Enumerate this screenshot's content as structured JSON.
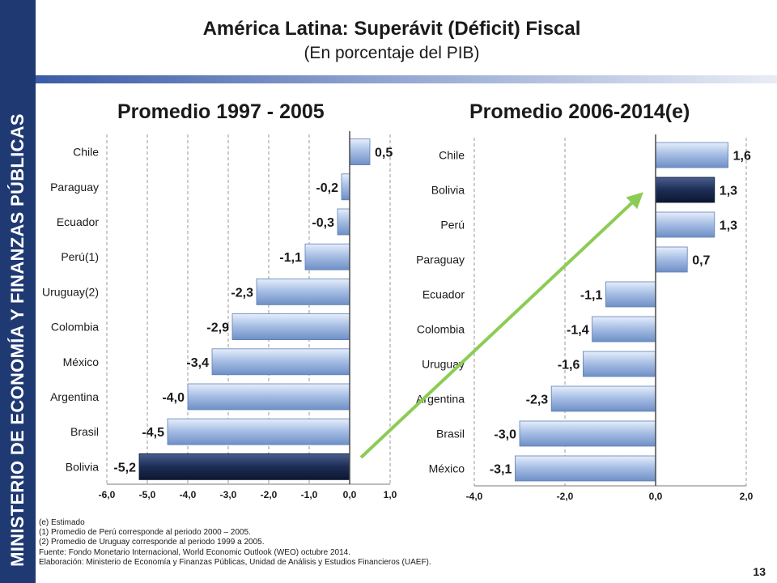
{
  "sidebar": {
    "text": "MINISTERIO DE ECONOMÍA Y FINANZAS PÚBLICAS"
  },
  "header": {
    "title": "América Latina: Superávit (Déficit) Fiscal",
    "subtitle": "(En porcentaje del PIB)"
  },
  "colors": {
    "bar": "#a9c0e6",
    "highlight": "#1c2d55",
    "arrow": "#8ccc55",
    "sidebar": "#1f3a73"
  },
  "chart_data": [
    {
      "type": "bar",
      "orientation": "horizontal",
      "title": "Promedio 1997 - 2005",
      "categories": [
        "Chile",
        "Paraguay",
        "Ecuador",
        "Perú(1)",
        "Uruguay(2)",
        "Colombia",
        "México",
        "Argentina",
        "Brasil",
        "Bolivia"
      ],
      "values": [
        0.5,
        -0.2,
        -0.3,
        -1.1,
        -2.3,
        -2.9,
        -3.4,
        -4.0,
        -4.5,
        -5.2
      ],
      "data_labels": [
        "0,5",
        "-0,2",
        "-0,3",
        "-1,1",
        "-2,3",
        "-2,9",
        "-3,4",
        "-4,0",
        "-4,5",
        "-5,2"
      ],
      "highlight": "Bolivia",
      "xlim": [
        -6.0,
        1.0
      ],
      "ticks": [
        -6,
        -5,
        -4,
        -3,
        -2,
        -1,
        0,
        1
      ],
      "tick_labels": [
        "-6,0",
        "-5,0",
        "-4,0",
        "-3,0",
        "-2,0",
        "-1,0",
        "0,0",
        "1,0"
      ],
      "grid": "vertical dashed"
    },
    {
      "type": "bar",
      "orientation": "horizontal",
      "title": "Promedio 2006-2014(e)",
      "categories": [
        "Chile",
        "Bolivia",
        "Perú",
        "Paraguay",
        "Ecuador",
        "Colombia",
        "Uruguay",
        "Argentina",
        "Brasil",
        "México"
      ],
      "values": [
        1.6,
        1.3,
        1.3,
        0.7,
        -1.1,
        -1.4,
        -1.6,
        -2.3,
        -3.0,
        -3.1
      ],
      "data_labels": [
        "1,6",
        "1,3",
        "1,3",
        "0,7",
        "-1,1",
        "-1,4",
        "-1,6",
        "-2,3",
        "-3,0",
        "-3,1"
      ],
      "highlight": "Bolivia",
      "xlim": [
        -4.0,
        2.0
      ],
      "ticks": [
        -4,
        -2,
        0,
        2
      ],
      "tick_labels": [
        "-4,0",
        "-2,0",
        "0,0",
        "2,0"
      ],
      "grid": "vertical dashed"
    }
  ],
  "notes": [
    "(e)   Estimado",
    "(1)   Promedio de Perú corresponde al periodo 2000 – 2005.",
    "(2)   Promedio de Uruguay corresponde al periodo 1999 a 2005.",
    "Fuente: Fondo Monetario Internacional, World Economic Outlook (WEO) octubre 2014.",
    "Elaboración: Ministerio de Economía y Finanzas Públicas, Unidad de Análisis y Estudios Financieros (UAEF)."
  ],
  "page_number": "13"
}
